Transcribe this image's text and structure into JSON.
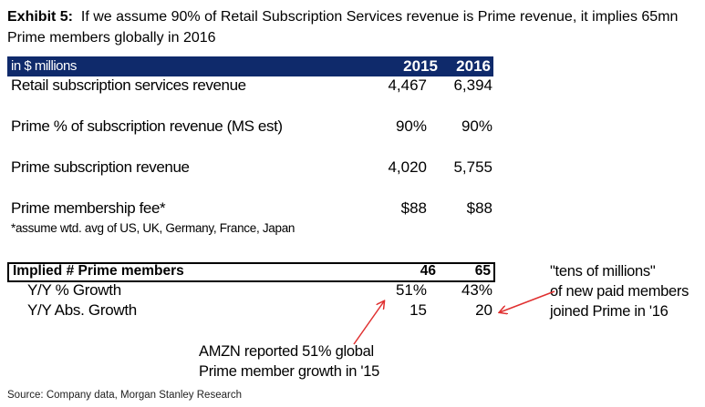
{
  "title": {
    "exhibit": "Exhibit 5:",
    "text": "If we assume 90% of Retail Subscription Services revenue is Prime revenue, it implies 65mn Prime members globally in 2016"
  },
  "table": {
    "unit_label": "in $ millions",
    "years": [
      "2015",
      "2016"
    ],
    "rows": [
      {
        "label": "Retail subscription services revenue",
        "v2015": "4,467",
        "v2016": "6,394"
      },
      {
        "label": "Prime % of subscription revenue (MS est)",
        "v2015": "90%",
        "v2016": "90%"
      },
      {
        "label": "Prime subscription revenue",
        "v2015": "4,020",
        "v2016": "5,755"
      },
      {
        "label": "Prime membership fee*",
        "v2015": "$88",
        "v2016": "$88"
      }
    ],
    "footnote": "*assume wtd. avg of US, UK, Germany, France, Japan",
    "implied": {
      "label": "Implied # Prime members",
      "v2015": "46",
      "v2016": "65"
    },
    "growth": [
      {
        "label": "Y/Y % Growth",
        "v2015": "51%",
        "v2016": "43%"
      },
      {
        "label": "Y/Y Abs. Growth",
        "v2015": "15",
        "v2016": "20"
      }
    ]
  },
  "annotations": {
    "right": [
      "\"tens of millions\"",
      "of new paid members",
      "joined Prime in '16"
    ],
    "bottom": [
      "AMZN reported 51% global",
      "Prime member growth in '15"
    ],
    "arrow_color": "#e03030"
  },
  "source": "Source: Company data, Morgan Stanley Research",
  "colors": {
    "header_bg": "#0f2a6b",
    "header_text": "#ffffff"
  }
}
